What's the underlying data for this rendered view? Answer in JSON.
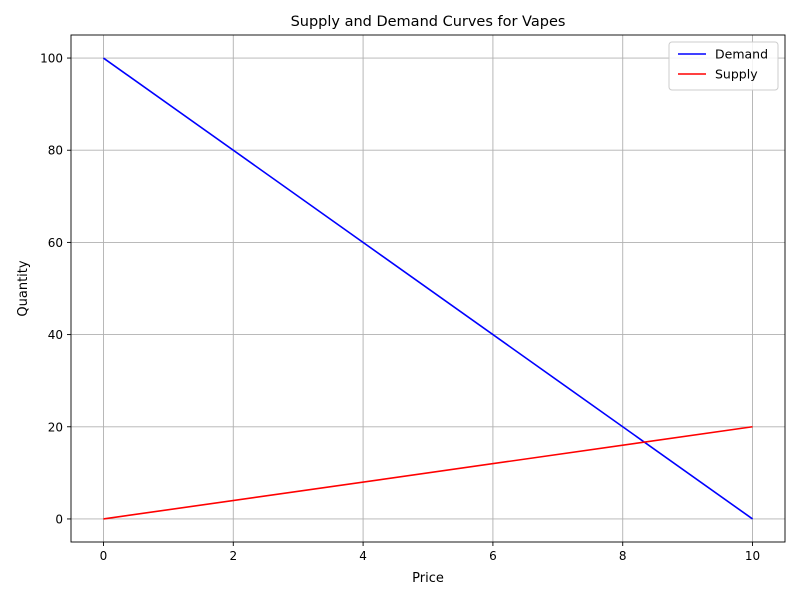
{
  "chart_data": {
    "type": "line",
    "title": "Supply and Demand Curves for Vapes",
    "xlabel": "Price",
    "ylabel": "Quantity",
    "xlim": [
      -0.5,
      10.5
    ],
    "ylim": [
      -5,
      105
    ],
    "xticks": [
      0,
      2,
      4,
      6,
      8,
      10
    ],
    "yticks": [
      0,
      20,
      40,
      60,
      80,
      100
    ],
    "grid": true,
    "legend_position": "top-right",
    "series": [
      {
        "name": "Demand",
        "color": "#0000ff",
        "x": [
          0,
          10
        ],
        "y": [
          100,
          0
        ]
      },
      {
        "name": "Supply",
        "color": "#ff0000",
        "x": [
          0,
          10
        ],
        "y": [
          0,
          20
        ]
      }
    ]
  }
}
